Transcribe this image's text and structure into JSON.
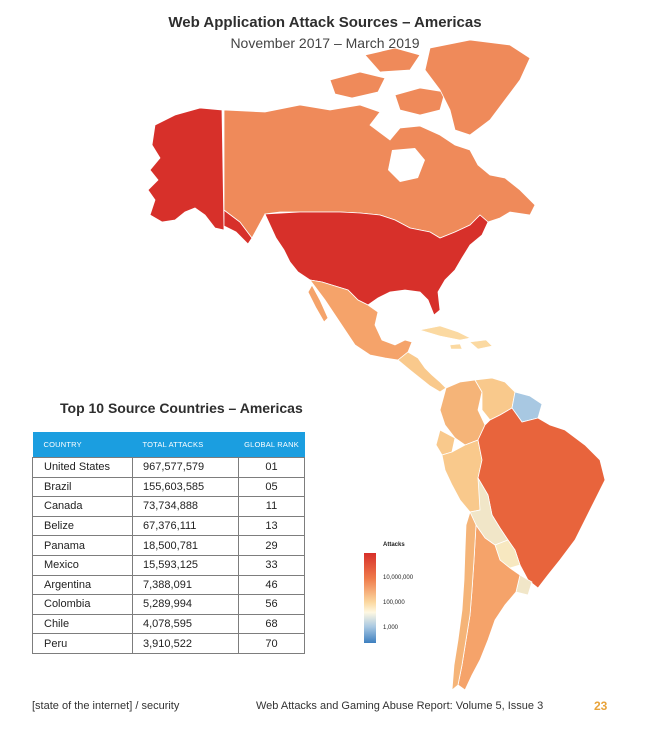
{
  "header": {
    "title": "Web Application Attack Sources – Americas",
    "subtitle": "November 2017 – March 2019"
  },
  "table": {
    "title": "Top 10 Source Countries – Americas",
    "columns": [
      "COUNTRY",
      "TOTAL ATTACKS",
      "GLOBAL RANK"
    ],
    "rows": [
      {
        "country": "United States",
        "attacks": "967,577,579",
        "rank": "01"
      },
      {
        "country": "Brazil",
        "attacks": "155,603,585",
        "rank": "05"
      },
      {
        "country": "Canada",
        "attacks": "73,734,888",
        "rank": "11"
      },
      {
        "country": "Belize",
        "attacks": "67,376,111",
        "rank": "13"
      },
      {
        "country": "Panama",
        "attacks": "18,500,781",
        "rank": "29"
      },
      {
        "country": "Mexico",
        "attacks": "15,593,125",
        "rank": "33"
      },
      {
        "country": "Argentina",
        "attacks": "7,388,091",
        "rank": "46"
      },
      {
        "country": "Colombia",
        "attacks": "5,289,994",
        "rank": "56"
      },
      {
        "country": "Chile",
        "attacks": "4,078,595",
        "rank": "68"
      },
      {
        "country": "Peru",
        "attacks": "3,910,522",
        "rank": "70"
      }
    ]
  },
  "legend": {
    "title": "Attacks",
    "labels": [
      "10,000,000",
      "100,000",
      "1,000"
    ],
    "colors": [
      "#d7302a",
      "#ef7a4a",
      "#fbd9a1",
      "#fef8e2",
      "#a8c8e2",
      "#3d7fbf"
    ]
  },
  "footer": {
    "left": "[state of the internet] / security",
    "right": "Web Attacks and Gaming Abuse Report: Volume 5, Issue 3",
    "page": "23"
  },
  "map_colors": {
    "us": "#d7302a",
    "alaska": "#d7302a",
    "canada": "#ef8a5a",
    "greenland": "#ef8a5a",
    "mexico": "#f5a36a",
    "central_america": "#f9c98c",
    "caribbean": "#fbd9a1",
    "brazil": "#e8643c",
    "venezuela": "#f9c98c",
    "colombia": "#f5b478",
    "peru": "#f9c98c",
    "bolivia": "#f1e6c8",
    "argentina": "#f5a36a",
    "chile": "#f5b478",
    "paraguay": "#f7e8c0",
    "uruguay": "#f1e6c8",
    "guianas": "#a8c8e2",
    "ecuador": "#f9c98c"
  }
}
